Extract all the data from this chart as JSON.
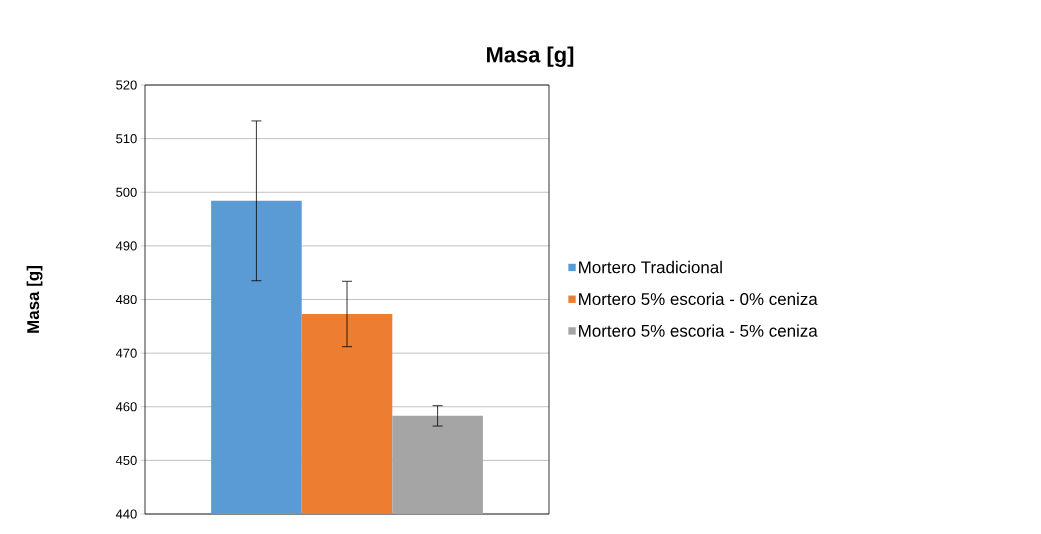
{
  "chart_data": {
    "type": "bar",
    "title": "Masa [g]",
    "ylabel": "Masa [g]",
    "categories": [
      null
    ],
    "series": [
      {
        "name": "Mortero Tradicional",
        "color": "#5b9bd5",
        "values": [
          498.4
        ],
        "errors": [
          14.9
        ]
      },
      {
        "name": "Mortero 5% escoria - 0% ceniza",
        "color": "#ed7d31",
        "values": [
          477.3
        ],
        "errors": [
          6.1
        ]
      },
      {
        "name": "Mortero 5% escoria - 5% ceniza",
        "color": "#a5a5a5",
        "values": [
          458.3
        ],
        "errors": [
          1.9
        ]
      }
    ],
    "ylim": [
      440,
      520
    ],
    "yticks": [
      440,
      450,
      460,
      470,
      480,
      490,
      500,
      510,
      520
    ],
    "grid": "y",
    "legend": "right"
  }
}
